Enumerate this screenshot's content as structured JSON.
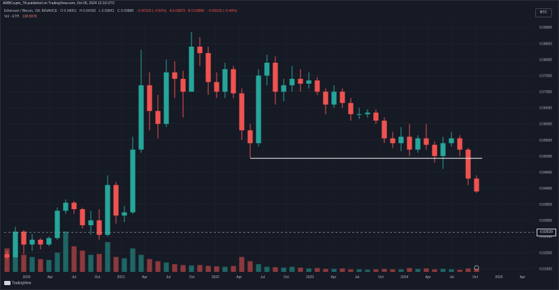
{
  "header": {
    "text": "AMBCrypto_TA published on TradingView.com, Oct 05, 2024 12:10 UTC"
  },
  "legend": {
    "symbol": "Ethereum / Bitcoin, 1W, BINANCE",
    "o": "O 0.04051",
    "h": "H 0.04150",
    "l": "L 0.03841",
    "c": "C 0.03888",
    "change": "−0.00163 (−4.02%)",
    "vol_label": "Vol · ETH",
    "vol_value": "138.587K",
    "ask": "A 0.03879",
    "bid": "B 0.03898",
    "spread": "−0.00019 (−0.49%)"
  },
  "currency_badge": "BTC",
  "price_badge": "0.02629",
  "logo": "TradingView",
  "colors": {
    "up": "#26a69a",
    "down": "#ef5350",
    "background": "#161A25",
    "horizontal_line": "#ffffff"
  },
  "chart_data": {
    "type": "candlestick",
    "symbol": "ETH/BTC",
    "interval": "1W",
    "ylim": [
      0.014,
      0.092
    ],
    "y_ticks": [
      "0.09000",
      "0.08500",
      "0.08000",
      "0.07500",
      "0.07000",
      "0.06500",
      "0.06000",
      "0.05500",
      "0.05000",
      "0.04500",
      "0.04000",
      "0.03500",
      "0.03000",
      "0.02500",
      "0.02000",
      "0.01500"
    ],
    "x_ticks": [
      "2020",
      "Apr",
      "Jul",
      "Oct",
      "2021",
      "Apr",
      "Jul",
      "Oct",
      "2022",
      "Apr",
      "Jul",
      "Oct",
      "2023",
      "Apr",
      "Jul",
      "Oct",
      "2024",
      "Apr",
      "Jul",
      "Oct",
      "2025",
      "Apr"
    ],
    "support_line": {
      "price": 0.0493,
      "from": "Jun 2022",
      "to": "Sep 2024"
    },
    "reference_line": {
      "price": 0.02629,
      "style": "dashed"
    },
    "candles": [
      {
        "d": "2020-01",
        "o": 0.0195,
        "h": 0.0205,
        "l": 0.018,
        "c": 0.0185
      },
      {
        "d": "2020-02",
        "o": 0.0185,
        "h": 0.028,
        "l": 0.0185,
        "c": 0.0265
      },
      {
        "d": "2020-03",
        "o": 0.0265,
        "h": 0.027,
        "l": 0.0195,
        "c": 0.0225
      },
      {
        "d": "2020-04",
        "o": 0.0225,
        "h": 0.0258,
        "l": 0.0205,
        "c": 0.024
      },
      {
        "d": "2020-05",
        "o": 0.024,
        "h": 0.0245,
        "l": 0.021,
        "c": 0.0225
      },
      {
        "d": "2020-06",
        "o": 0.0225,
        "h": 0.025,
        "l": 0.022,
        "c": 0.0245
      },
      {
        "d": "2020-07",
        "o": 0.0245,
        "h": 0.034,
        "l": 0.024,
        "c": 0.033
      },
      {
        "d": "2020-08",
        "o": 0.033,
        "h": 0.0365,
        "l": 0.032,
        "c": 0.0355
      },
      {
        "d": "2020-09",
        "o": 0.0355,
        "h": 0.036,
        "l": 0.032,
        "c": 0.0335
      },
      {
        "d": "2020-10",
        "o": 0.0335,
        "h": 0.034,
        "l": 0.0275,
        "c": 0.0285
      },
      {
        "d": "2020-11",
        "o": 0.0285,
        "h": 0.033,
        "l": 0.0255,
        "c": 0.03
      },
      {
        "d": "2020-12",
        "o": 0.03,
        "h": 0.0335,
        "l": 0.024,
        "c": 0.0255
      },
      {
        "d": "2021-01",
        "o": 0.0255,
        "h": 0.044,
        "l": 0.025,
        "c": 0.041
      },
      {
        "d": "2021-02",
        "o": 0.041,
        "h": 0.042,
        "l": 0.029,
        "c": 0.0315
      },
      {
        "d": "2021-03",
        "o": 0.0315,
        "h": 0.0345,
        "l": 0.0295,
        "c": 0.0325
      },
      {
        "d": "2021-04",
        "o": 0.0325,
        "h": 0.056,
        "l": 0.032,
        "c": 0.052
      },
      {
        "d": "2021-05",
        "o": 0.052,
        "h": 0.083,
        "l": 0.051,
        "c": 0.072
      },
      {
        "d": "2021-06",
        "o": 0.072,
        "h": 0.076,
        "l": 0.058,
        "c": 0.064
      },
      {
        "d": "2021-07",
        "o": 0.064,
        "h": 0.069,
        "l": 0.0555,
        "c": 0.06
      },
      {
        "d": "2021-08",
        "o": 0.06,
        "h": 0.08,
        "l": 0.059,
        "c": 0.076
      },
      {
        "d": "2021-09",
        "o": 0.076,
        "h": 0.0795,
        "l": 0.068,
        "c": 0.074
      },
      {
        "d": "2021-10",
        "o": 0.074,
        "h": 0.0765,
        "l": 0.062,
        "c": 0.07
      },
      {
        "d": "2021-11",
        "o": 0.07,
        "h": 0.0885,
        "l": 0.07,
        "c": 0.084
      },
      {
        "d": "2021-12",
        "o": 0.084,
        "h": 0.087,
        "l": 0.078,
        "c": 0.082
      },
      {
        "d": "2022-01",
        "o": 0.082,
        "h": 0.084,
        "l": 0.069,
        "c": 0.073
      },
      {
        "d": "2022-02",
        "o": 0.073,
        "h": 0.076,
        "l": 0.068,
        "c": 0.07
      },
      {
        "d": "2022-03",
        "o": 0.07,
        "h": 0.079,
        "l": 0.068,
        "c": 0.077
      },
      {
        "d": "2022-04",
        "o": 0.077,
        "h": 0.078,
        "l": 0.068,
        "c": 0.0695
      },
      {
        "d": "2022-05",
        "o": 0.0695,
        "h": 0.071,
        "l": 0.055,
        "c": 0.058
      },
      {
        "d": "2022-06",
        "o": 0.058,
        "h": 0.06,
        "l": 0.0495,
        "c": 0.054
      },
      {
        "d": "2022-07",
        "o": 0.054,
        "h": 0.077,
        "l": 0.053,
        "c": 0.075
      },
      {
        "d": "2022-08",
        "o": 0.075,
        "h": 0.0815,
        "l": 0.072,
        "c": 0.079
      },
      {
        "d": "2022-09",
        "o": 0.079,
        "h": 0.081,
        "l": 0.066,
        "c": 0.07
      },
      {
        "d": "2022-10",
        "o": 0.07,
        "h": 0.074,
        "l": 0.067,
        "c": 0.072
      },
      {
        "d": "2022-11",
        "o": 0.072,
        "h": 0.078,
        "l": 0.07,
        "c": 0.074
      },
      {
        "d": "2022-12",
        "o": 0.074,
        "h": 0.077,
        "l": 0.07,
        "c": 0.0725
      },
      {
        "d": "2023-01",
        "o": 0.0725,
        "h": 0.076,
        "l": 0.071,
        "c": 0.0735
      },
      {
        "d": "2023-02",
        "o": 0.0735,
        "h": 0.0745,
        "l": 0.069,
        "c": 0.07
      },
      {
        "d": "2023-03",
        "o": 0.07,
        "h": 0.071,
        "l": 0.063,
        "c": 0.066
      },
      {
        "d": "2023-04",
        "o": 0.066,
        "h": 0.072,
        "l": 0.065,
        "c": 0.07
      },
      {
        "d": "2023-05",
        "o": 0.07,
        "h": 0.071,
        "l": 0.065,
        "c": 0.0665
      },
      {
        "d": "2023-06",
        "o": 0.0665,
        "h": 0.068,
        "l": 0.061,
        "c": 0.063
      },
      {
        "d": "2023-07",
        "o": 0.063,
        "h": 0.065,
        "l": 0.0615,
        "c": 0.063
      },
      {
        "d": "2023-08",
        "o": 0.063,
        "h": 0.0645,
        "l": 0.062,
        "c": 0.0635
      },
      {
        "d": "2023-09",
        "o": 0.0635,
        "h": 0.0645,
        "l": 0.06,
        "c": 0.061
      },
      {
        "d": "2023-10",
        "o": 0.061,
        "h": 0.062,
        "l": 0.054,
        "c": 0.0555
      },
      {
        "d": "2023-11",
        "o": 0.0555,
        "h": 0.0575,
        "l": 0.0525,
        "c": 0.054
      },
      {
        "d": "2023-12",
        "o": 0.054,
        "h": 0.059,
        "l": 0.0515,
        "c": 0.056
      },
      {
        "d": "2024-01",
        "o": 0.056,
        "h": 0.06,
        "l": 0.05,
        "c": 0.052
      },
      {
        "d": "2024-02",
        "o": 0.052,
        "h": 0.0565,
        "l": 0.051,
        "c": 0.0555
      },
      {
        "d": "2024-03",
        "o": 0.0555,
        "h": 0.06,
        "l": 0.052,
        "c": 0.0535
      },
      {
        "d": "2024-04",
        "o": 0.0535,
        "h": 0.0545,
        "l": 0.048,
        "c": 0.05
      },
      {
        "d": "2024-05",
        "o": 0.05,
        "h": 0.056,
        "l": 0.046,
        "c": 0.054
      },
      {
        "d": "2024-06",
        "o": 0.054,
        "h": 0.0575,
        "l": 0.053,
        "c": 0.0555
      },
      {
        "d": "2024-07",
        "o": 0.0555,
        "h": 0.0565,
        "l": 0.05,
        "c": 0.052
      },
      {
        "d": "2024-08",
        "o": 0.052,
        "h": 0.0525,
        "l": 0.041,
        "c": 0.043
      },
      {
        "d": "2024-09",
        "o": 0.043,
        "h": 0.044,
        "l": 0.0385,
        "c": 0.039
      }
    ],
    "volume": [
      55,
      70,
      40,
      35,
      30,
      28,
      45,
      95,
      60,
      50,
      40,
      42,
      70,
      35,
      32,
      55,
      40,
      30,
      25,
      22,
      18,
      16,
      15,
      16,
      14,
      13,
      12,
      14,
      35,
      25,
      18,
      12,
      11,
      10,
      12,
      10,
      8,
      9,
      7,
      7,
      8,
      6,
      6,
      5,
      6,
      7,
      6,
      6,
      9,
      7,
      8,
      6,
      7,
      6,
      5,
      8,
      7
    ]
  }
}
